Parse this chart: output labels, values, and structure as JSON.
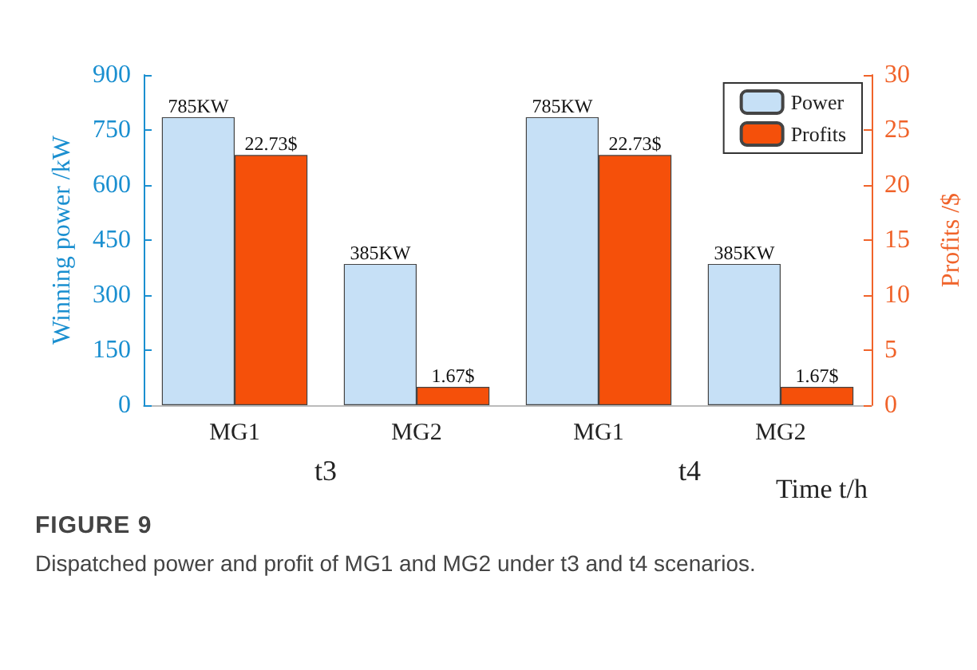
{
  "chart_data": {
    "type": "bar",
    "title": "FIGURE 9",
    "subtitle": "Dispatched power and profit of MG1 and MG2 under t3 and t4 scenarios.",
    "xlabel": "Time t/h",
    "ylabel": "Winning power /kW",
    "y2label": "Profits /$",
    "categories": [
      "MG1",
      "MG2",
      "MG1",
      "MG2"
    ],
    "series": [
      {
        "name": "Power",
        "color": "#c6e0f6",
        "values": [
          785,
          385,
          785,
          385
        ],
        "value_labels": [
          "785KW",
          "385KW",
          "785KW",
          "385KW"
        ]
      },
      {
        "name": "Profits",
        "color": "#f5500a",
        "axis": "y2",
        "values": [
          22.73,
          1.67,
          22.73,
          1.67
        ],
        "value_labels": [
          "22.73$",
          "1.67$",
          "22.73$",
          "1.67$"
        ]
      }
    ],
    "ylim": [
      0,
      900
    ],
    "yticks": [
      0,
      150,
      300,
      450,
      600,
      750,
      900
    ],
    "y2lim": [
      0,
      30
    ],
    "y2ticks": [
      0,
      5,
      10,
      15,
      20,
      25,
      30
    ],
    "annotations": [
      "t3",
      "t4"
    ],
    "legend": "top right",
    "grid": false
  }
}
